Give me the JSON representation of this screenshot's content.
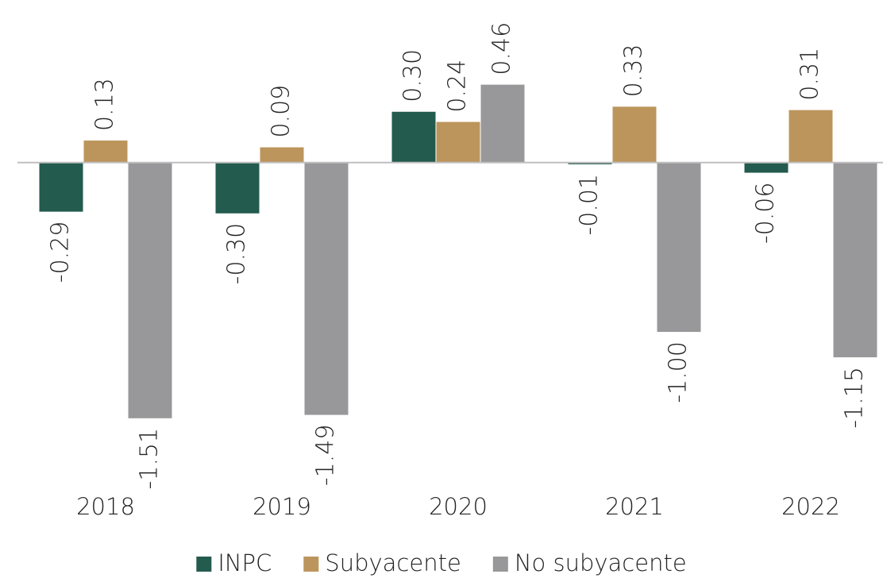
{
  "chart_data": {
    "type": "bar",
    "categories": [
      "2018",
      "2019",
      "2020",
      "2021",
      "2022"
    ],
    "series": [
      {
        "name": "INPC",
        "color": "#235b4e",
        "values": [
          -0.29,
          -0.3,
          0.3,
          -0.01,
          -0.06
        ],
        "value_labels": [
          "-0.29",
          "-0.30",
          "0.30",
          "-0.01",
          "-0.06"
        ]
      },
      {
        "name": "Subyacente",
        "color": "#bc955c",
        "values": [
          0.13,
          0.09,
          0.24,
          0.33,
          0.31
        ],
        "value_labels": [
          "0.13",
          "0.09",
          "0.24",
          "0.33",
          "0.31"
        ]
      },
      {
        "name": "No subyacente",
        "color": "#98989a",
        "values": [
          -1.51,
          -1.49,
          0.46,
          -1.0,
          -1.15
        ],
        "value_labels": [
          "-1.51",
          "-1.49",
          "0.46",
          "-1.00",
          "-1.15"
        ]
      }
    ],
    "ylim": [
      -1.9,
      0.96
    ]
  }
}
